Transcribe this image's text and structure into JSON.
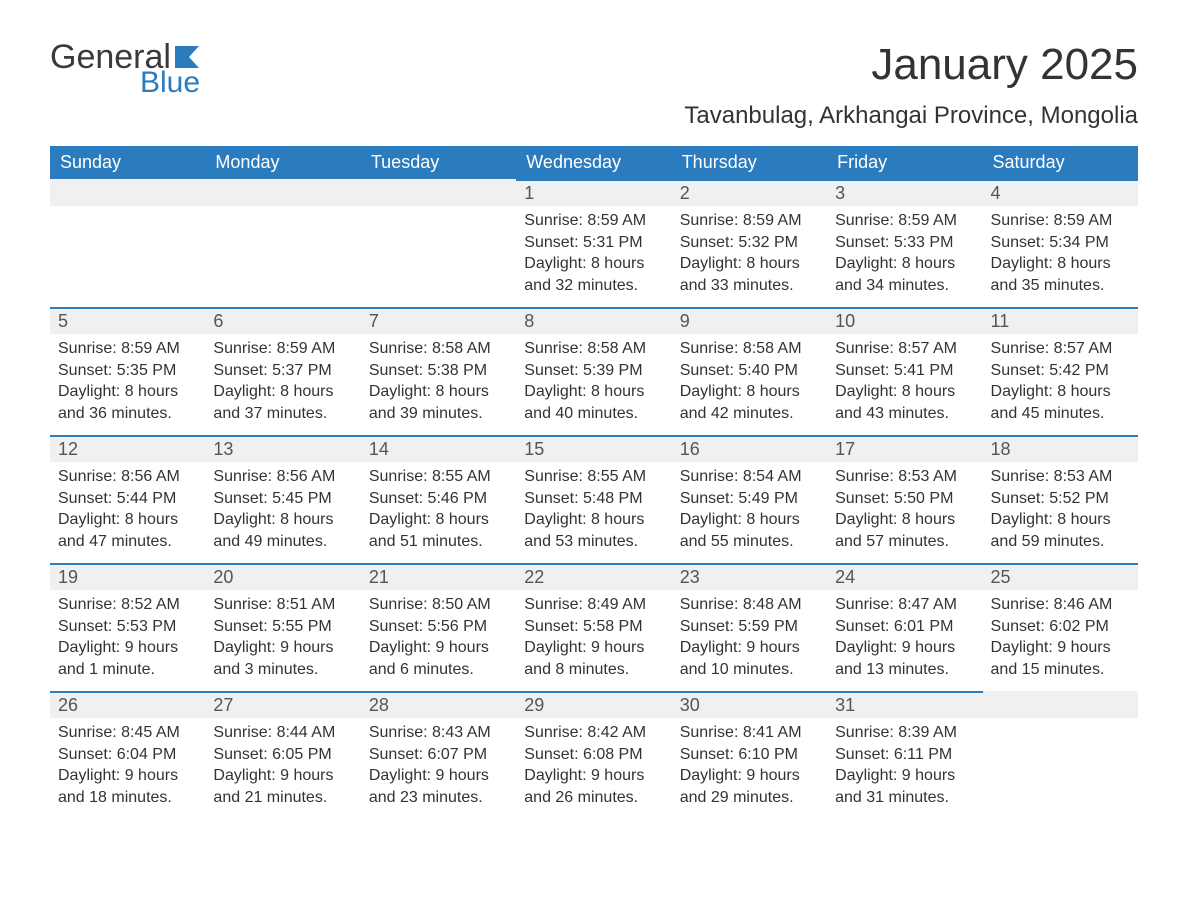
{
  "logo": {
    "word1": "General",
    "word2": "Blue",
    "flag_color": "#2b7bbf",
    "text_gray": "#3a3a3a"
  },
  "title": "January 2025",
  "subtitle": "Tavanbulag, Arkhangai Province, Mongolia",
  "colors": {
    "header_bg": "#2b7bbf",
    "header_text": "#ffffff",
    "daynum_bg": "#f0f0f0",
    "row_border": "#2b7bbf",
    "body_bg": "#ffffff",
    "text": "#333333"
  },
  "typography": {
    "title_fontsize": 44,
    "subtitle_fontsize": 24,
    "header_fontsize": 18,
    "daynum_fontsize": 18,
    "body_fontsize": 16
  },
  "layout": {
    "columns": 7,
    "rows": 5,
    "start_day_index": 3
  },
  "day_headers": [
    "Sunday",
    "Monday",
    "Tuesday",
    "Wednesday",
    "Thursday",
    "Friday",
    "Saturday"
  ],
  "days": [
    {
      "n": "1",
      "sunrise": "8:59 AM",
      "sunset": "5:31 PM",
      "daylight": "8 hours and 32 minutes."
    },
    {
      "n": "2",
      "sunrise": "8:59 AM",
      "sunset": "5:32 PM",
      "daylight": "8 hours and 33 minutes."
    },
    {
      "n": "3",
      "sunrise": "8:59 AM",
      "sunset": "5:33 PM",
      "daylight": "8 hours and 34 minutes."
    },
    {
      "n": "4",
      "sunrise": "8:59 AM",
      "sunset": "5:34 PM",
      "daylight": "8 hours and 35 minutes."
    },
    {
      "n": "5",
      "sunrise": "8:59 AM",
      "sunset": "5:35 PM",
      "daylight": "8 hours and 36 minutes."
    },
    {
      "n": "6",
      "sunrise": "8:59 AM",
      "sunset": "5:37 PM",
      "daylight": "8 hours and 37 minutes."
    },
    {
      "n": "7",
      "sunrise": "8:58 AM",
      "sunset": "5:38 PM",
      "daylight": "8 hours and 39 minutes."
    },
    {
      "n": "8",
      "sunrise": "8:58 AM",
      "sunset": "5:39 PM",
      "daylight": "8 hours and 40 minutes."
    },
    {
      "n": "9",
      "sunrise": "8:58 AM",
      "sunset": "5:40 PM",
      "daylight": "8 hours and 42 minutes."
    },
    {
      "n": "10",
      "sunrise": "8:57 AM",
      "sunset": "5:41 PM",
      "daylight": "8 hours and 43 minutes."
    },
    {
      "n": "11",
      "sunrise": "8:57 AM",
      "sunset": "5:42 PM",
      "daylight": "8 hours and 45 minutes."
    },
    {
      "n": "12",
      "sunrise": "8:56 AM",
      "sunset": "5:44 PM",
      "daylight": "8 hours and 47 minutes."
    },
    {
      "n": "13",
      "sunrise": "8:56 AM",
      "sunset": "5:45 PM",
      "daylight": "8 hours and 49 minutes."
    },
    {
      "n": "14",
      "sunrise": "8:55 AM",
      "sunset": "5:46 PM",
      "daylight": "8 hours and 51 minutes."
    },
    {
      "n": "15",
      "sunrise": "8:55 AM",
      "sunset": "5:48 PM",
      "daylight": "8 hours and 53 minutes."
    },
    {
      "n": "16",
      "sunrise": "8:54 AM",
      "sunset": "5:49 PM",
      "daylight": "8 hours and 55 minutes."
    },
    {
      "n": "17",
      "sunrise": "8:53 AM",
      "sunset": "5:50 PM",
      "daylight": "8 hours and 57 minutes."
    },
    {
      "n": "18",
      "sunrise": "8:53 AM",
      "sunset": "5:52 PM",
      "daylight": "8 hours and 59 minutes."
    },
    {
      "n": "19",
      "sunrise": "8:52 AM",
      "sunset": "5:53 PM",
      "daylight": "9 hours and 1 minute."
    },
    {
      "n": "20",
      "sunrise": "8:51 AM",
      "sunset": "5:55 PM",
      "daylight": "9 hours and 3 minutes."
    },
    {
      "n": "21",
      "sunrise": "8:50 AM",
      "sunset": "5:56 PM",
      "daylight": "9 hours and 6 minutes."
    },
    {
      "n": "22",
      "sunrise": "8:49 AM",
      "sunset": "5:58 PM",
      "daylight": "9 hours and 8 minutes."
    },
    {
      "n": "23",
      "sunrise": "8:48 AM",
      "sunset": "5:59 PM",
      "daylight": "9 hours and 10 minutes."
    },
    {
      "n": "24",
      "sunrise": "8:47 AM",
      "sunset": "6:01 PM",
      "daylight": "9 hours and 13 minutes."
    },
    {
      "n": "25",
      "sunrise": "8:46 AM",
      "sunset": "6:02 PM",
      "daylight": "9 hours and 15 minutes."
    },
    {
      "n": "26",
      "sunrise": "8:45 AM",
      "sunset": "6:04 PM",
      "daylight": "9 hours and 18 minutes."
    },
    {
      "n": "27",
      "sunrise": "8:44 AM",
      "sunset": "6:05 PM",
      "daylight": "9 hours and 21 minutes."
    },
    {
      "n": "28",
      "sunrise": "8:43 AM",
      "sunset": "6:07 PM",
      "daylight": "9 hours and 23 minutes."
    },
    {
      "n": "29",
      "sunrise": "8:42 AM",
      "sunset": "6:08 PM",
      "daylight": "9 hours and 26 minutes."
    },
    {
      "n": "30",
      "sunrise": "8:41 AM",
      "sunset": "6:10 PM",
      "daylight": "9 hours and 29 minutes."
    },
    {
      "n": "31",
      "sunrise": "8:39 AM",
      "sunset": "6:11 PM",
      "daylight": "9 hours and 31 minutes."
    }
  ],
  "labels": {
    "sunrise": "Sunrise: ",
    "sunset": "Sunset: ",
    "daylight": "Daylight: "
  }
}
